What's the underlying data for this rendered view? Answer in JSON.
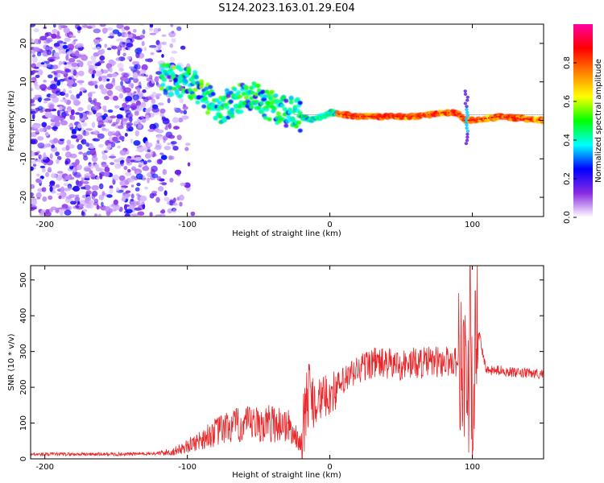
{
  "title": "S124.2023.163.01.29.E04",
  "chart_data": [
    {
      "type": "heatmap",
      "xlabel": "Height of straight line (km)",
      "ylabel": "Frequency (Hz)",
      "xlim": [
        -210,
        150
      ],
      "ylim": [
        -25,
        25
      ],
      "xticks": [
        -200,
        -100,
        0,
        100
      ],
      "yticks": [
        20,
        10,
        0,
        -10,
        -20
      ],
      "colorbar": {
        "label": "Normalized spectral amplitude",
        "range": [
          0,
          1
        ],
        "ticks": [
          "0.0",
          "0.2",
          "0.4",
          "0.6",
          "0.8"
        ],
        "tick_values": [
          0,
          0.2,
          0.4,
          0.6,
          0.8
        ],
        "colors": [
          "#ffffff",
          "#8a2be2",
          "#0000ff",
          "#00ffff",
          "#00ff00",
          "#ffff00",
          "#ff8000",
          "#ff0000",
          "#ff00a0"
        ]
      },
      "ridge": {
        "x": [
          -115,
          -105,
          -95,
          -85,
          -75,
          -65,
          -55,
          -45,
          -35,
          -25,
          -15,
          -5,
          0,
          20,
          40,
          60,
          80,
          90,
          95,
          100,
          120,
          150
        ],
        "y": [
          11,
          10,
          9,
          5,
          3,
          6,
          6,
          4,
          3,
          2,
          0,
          1,
          2,
          1,
          1,
          1,
          2,
          2,
          0,
          0,
          1,
          0
        ]
      }
    },
    {
      "type": "line",
      "xlabel": "Height of straight line (km)",
      "ylabel": "SNR (10 * v/v)",
      "xlim": [
        -210,
        150
      ],
      "ylim": [
        0,
        540
      ],
      "xticks": [
        -200,
        -100,
        0,
        100
      ],
      "yticks": [
        0,
        100,
        200,
        300,
        400,
        500
      ],
      "series": [
        {
          "name": "SNR",
          "color": "#e8282a",
          "x": [
            -210,
            -180,
            -150,
            -120,
            -110,
            -100,
            -90,
            -80,
            -70,
            -60,
            -50,
            -40,
            -30,
            -20,
            -15,
            -10,
            0,
            10,
            20,
            30,
            40,
            50,
            60,
            70,
            80,
            90,
            95,
            100,
            103,
            110,
            120,
            130,
            150
          ],
          "y": [
            12,
            13,
            13,
            15,
            20,
            35,
            55,
            75,
            90,
            95,
            95,
            100,
            95,
            40,
            190,
            160,
            180,
            215,
            250,
            270,
            265,
            262,
            268,
            270,
            272,
            275,
            250,
            130,
            380,
            245,
            248,
            240,
            238
          ]
        }
      ]
    }
  ]
}
